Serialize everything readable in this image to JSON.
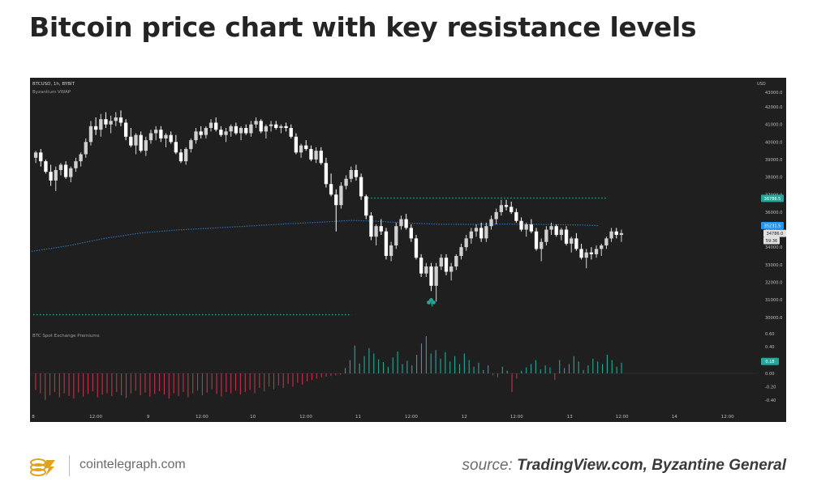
{
  "headline": "Bitcoin price chart with key resistance levels",
  "footer": {
    "site": "cointelegraph.com",
    "source_prefix": "source:",
    "source_names": "TradingView.com, Byzantine General"
  },
  "chart_data": {
    "type": "candlestick",
    "symbol_label": "BTCUSD, 1h, BYBIT",
    "indicator_label": "Byzantium VWAP",
    "currency": "USD",
    "price_axis": {
      "ticks": [
        42000,
        41000,
        40000,
        39000,
        38000,
        37000,
        36000,
        35000,
        34000,
        33000,
        32000,
        31000,
        30000
      ],
      "tick_labels": [
        "42000.0",
        "41000.0",
        "40000.0",
        "39000.0",
        "38000.0",
        "37000.0",
        "36000.0",
        "35000.0",
        "34000.0",
        "33000.0",
        "32000.0",
        "31000.0",
        "30000.0"
      ],
      "top_partial_label": "43000.0"
    },
    "price_tags": [
      {
        "value": 36786.5,
        "label": "36786.5",
        "color": "#26a69a"
      },
      {
        "value": 35231.5,
        "label": "35231.5",
        "color": "#2196f3"
      },
      {
        "value": 34786.0,
        "label": "34786.0",
        "color": "#e0e0e0"
      },
      {
        "value": 34380,
        "label": "59:36",
        "color": "#e0e0e0"
      }
    ],
    "resistance_levels": [
      {
        "value": 36800,
        "from": 0.46,
        "to": 0.79,
        "color": "#26a69a"
      },
      {
        "value": 30150,
        "from": 0.0,
        "to": 0.44,
        "color": "#26a69a"
      }
    ],
    "vwap": {
      "color": "#2f6fb0",
      "points": [
        [
          0.0,
          33760
        ],
        [
          0.05,
          34080
        ],
        [
          0.1,
          34500
        ],
        [
          0.15,
          34810
        ],
        [
          0.2,
          34980
        ],
        [
          0.25,
          35090
        ],
        [
          0.3,
          35210
        ],
        [
          0.35,
          35330
        ],
        [
          0.4,
          35430
        ],
        [
          0.44,
          35530
        ],
        [
          0.48,
          35470
        ],
        [
          0.52,
          35370
        ],
        [
          0.56,
          35310
        ],
        [
          0.6,
          35300
        ],
        [
          0.65,
          35320
        ],
        [
          0.7,
          35300
        ],
        [
          0.75,
          35270
        ],
        [
          0.78,
          35230
        ]
      ]
    },
    "x_axis": {
      "labels": [
        {
          "pos": 0.0,
          "label": "8"
        },
        {
          "pos": 0.086,
          "label": "12:00"
        },
        {
          "pos": 0.158,
          "label": "9"
        },
        {
          "pos": 0.232,
          "label": "12:00"
        },
        {
          "pos": 0.302,
          "label": "10"
        },
        {
          "pos": 0.375,
          "label": "12:00"
        },
        {
          "pos": 0.447,
          "label": "11"
        },
        {
          "pos": 0.52,
          "label": "12:00"
        },
        {
          "pos": 0.593,
          "label": "12"
        },
        {
          "pos": 0.665,
          "label": "12:00"
        },
        {
          "pos": 0.738,
          "label": "13"
        },
        {
          "pos": 0.81,
          "label": "12:00"
        },
        {
          "pos": 0.882,
          "label": "14"
        },
        {
          "pos": 0.955,
          "label": "12:00"
        }
      ]
    },
    "candles": [
      [
        39100,
        39500,
        38800,
        39400
      ],
      [
        39400,
        39600,
        38600,
        38900
      ],
      [
        38900,
        39000,
        38200,
        38300
      ],
      [
        38300,
        38700,
        37500,
        37800
      ],
      [
        37800,
        38600,
        37200,
        38400
      ],
      [
        38400,
        38800,
        38100,
        38700
      ],
      [
        38700,
        38900,
        37900,
        38000
      ],
      [
        38000,
        38600,
        37700,
        38500
      ],
      [
        38500,
        39100,
        38300,
        38900
      ],
      [
        38900,
        39400,
        38600,
        39300
      ],
      [
        39300,
        40200,
        39100,
        40000
      ],
      [
        40000,
        41200,
        39800,
        40900
      ],
      [
        40900,
        41400,
        40400,
        40700
      ],
      [
        40700,
        41600,
        40300,
        41300
      ],
      [
        41300,
        41700,
        40800,
        41000
      ],
      [
        41000,
        41500,
        40500,
        41200
      ],
      [
        41200,
        41700,
        40900,
        41400
      ],
      [
        41400,
        41800,
        40900,
        41100
      ],
      [
        41100,
        41300,
        40100,
        40300
      ],
      [
        40300,
        40800,
        39700,
        39800
      ],
      [
        39800,
        40500,
        39300,
        40400
      ],
      [
        40400,
        40600,
        39400,
        39500
      ],
      [
        39500,
        40300,
        39200,
        40100
      ],
      [
        40100,
        40700,
        39900,
        40500
      ],
      [
        40500,
        40900,
        40100,
        40700
      ],
      [
        40700,
        40900,
        40000,
        40200
      ],
      [
        40200,
        40500,
        39700,
        40400
      ],
      [
        40400,
        40600,
        39900,
        40000
      ],
      [
        40000,
        40400,
        39300,
        39400
      ],
      [
        39400,
        39600,
        38800,
        38900
      ],
      [
        38900,
        39700,
        38700,
        39600
      ],
      [
        39600,
        40200,
        39400,
        40100
      ],
      [
        40100,
        40800,
        39900,
        40600
      ],
      [
        40600,
        40900,
        40200,
        40400
      ],
      [
        40400,
        40900,
        40200,
        40800
      ],
      [
        40800,
        41300,
        40600,
        41100
      ],
      [
        41100,
        41400,
        40600,
        40700
      ],
      [
        40700,
        40900,
        40300,
        40400
      ],
      [
        40400,
        40800,
        40000,
        40600
      ],
      [
        40600,
        41000,
        40300,
        40900
      ],
      [
        40900,
        41100,
        40400,
        40500
      ],
      [
        40500,
        40900,
        40100,
        40800
      ],
      [
        40800,
        41000,
        40400,
        40500
      ],
      [
        40500,
        41200,
        40300,
        41000
      ],
      [
        41000,
        41400,
        40800,
        41200
      ],
      [
        41200,
        41300,
        40500,
        40600
      ],
      [
        40600,
        41000,
        40200,
        40900
      ],
      [
        40900,
        41200,
        40600,
        41000
      ],
      [
        41000,
        41200,
        40700,
        40800
      ],
      [
        40800,
        41000,
        40500,
        40900
      ],
      [
        40900,
        41100,
        40600,
        40800
      ],
      [
        40800,
        41000,
        40200,
        40300
      ],
      [
        40300,
        40500,
        39300,
        39400
      ],
      [
        39400,
        39900,
        39100,
        39800
      ],
      [
        39800,
        40100,
        39500,
        39600
      ],
      [
        39600,
        39800,
        38900,
        39000
      ],
      [
        39000,
        39700,
        38800,
        39500
      ],
      [
        39500,
        39700,
        38700,
        38800
      ],
      [
        38800,
        39100,
        37400,
        37600
      ],
      [
        37600,
        38200,
        36900,
        37000
      ],
      [
        37000,
        37300,
        34900,
        36400
      ],
      [
        36400,
        37700,
        36200,
        37500
      ],
      [
        37500,
        38100,
        37300,
        37900
      ],
      [
        37900,
        38600,
        37700,
        38400
      ],
      [
        38400,
        38700,
        37800,
        38000
      ],
      [
        38000,
        38200,
        36700,
        36900
      ],
      [
        36900,
        37000,
        35600,
        35800
      ],
      [
        35800,
        36000,
        34400,
        34600
      ],
      [
        34600,
        35300,
        34100,
        35200
      ],
      [
        35200,
        35600,
        34700,
        34900
      ],
      [
        34900,
        35100,
        33300,
        33500
      ],
      [
        33500,
        34300,
        33200,
        34100
      ],
      [
        34100,
        35400,
        33900,
        35200
      ],
      [
        35200,
        35800,
        35000,
        35600
      ],
      [
        35600,
        35900,
        35000,
        35100
      ],
      [
        35100,
        35300,
        34300,
        34500
      ],
      [
        34500,
        34700,
        33300,
        33400
      ],
      [
        33400,
        33600,
        32300,
        32500
      ],
      [
        32500,
        33100,
        32300,
        32900
      ],
      [
        32900,
        33100,
        31500,
        31800
      ],
      [
        31800,
        33100,
        30900,
        32900
      ],
      [
        32900,
        33600,
        32700,
        33400
      ],
      [
        33400,
        33600,
        32400,
        32600
      ],
      [
        32600,
        33100,
        32100,
        32900
      ],
      [
        32900,
        33600,
        32700,
        33500
      ],
      [
        33500,
        34200,
        33300,
        34000
      ],
      [
        34000,
        34700,
        33800,
        34500
      ],
      [
        34500,
        35100,
        34200,
        34900
      ],
      [
        34900,
        35300,
        34600,
        35100
      ],
      [
        35100,
        35400,
        34300,
        34500
      ],
      [
        34500,
        35400,
        34300,
        35200
      ],
      [
        35200,
        35800,
        35000,
        35600
      ],
      [
        35600,
        36200,
        35300,
        36000
      ],
      [
        36000,
        36700,
        35800,
        36400
      ],
      [
        36400,
        36700,
        36100,
        36300
      ],
      [
        36300,
        36600,
        35900,
        36000
      ],
      [
        36000,
        36200,
        35400,
        35500
      ],
      [
        35500,
        35700,
        34900,
        35000
      ],
      [
        35000,
        35400,
        34600,
        35300
      ],
      [
        35300,
        35600,
        34800,
        34900
      ],
      [
        34900,
        35100,
        33800,
        33900
      ],
      [
        33900,
        34500,
        33200,
        34300
      ],
      [
        34300,
        35200,
        34100,
        35000
      ],
      [
        35000,
        35400,
        34700,
        35200
      ],
      [
        35200,
        35300,
        34600,
        34700
      ],
      [
        34700,
        35100,
        34400,
        35000
      ],
      [
        35000,
        35200,
        34100,
        34200
      ],
      [
        34200,
        34600,
        33700,
        34500
      ],
      [
        34500,
        34800,
        33800,
        33900
      ],
      [
        33900,
        34200,
        33300,
        33400
      ],
      [
        33400,
        33900,
        32800,
        33700
      ],
      [
        33700,
        34000,
        33300,
        33600
      ],
      [
        33600,
        34100,
        33400,
        33900
      ],
      [
        33900,
        34200,
        33500,
        34100
      ],
      [
        34100,
        34600,
        33900,
        34500
      ],
      [
        34500,
        35100,
        34300,
        34900
      ],
      [
        34900,
        35100,
        34500,
        34700
      ],
      [
        34700,
        35000,
        34300,
        34800
      ]
    ],
    "indicator": {
      "label": "BTC Spot Exchange Premiums",
      "axis_ticks": [
        0.6,
        0.4,
        0.2,
        0.0,
        -0.2,
        -0.4
      ],
      "axis_labels": [
        "0.60",
        "0.40",
        "0.20",
        "0.00",
        "-0.20",
        "-0.40"
      ],
      "current_tag": "0.18",
      "positive_color": "#26a69a",
      "negative_color": "#c2334a",
      "values": [
        -0.25,
        -0.3,
        -0.4,
        -0.33,
        -0.28,
        -0.36,
        -0.3,
        -0.34,
        -0.38,
        -0.29,
        -0.35,
        -0.31,
        -0.27,
        -0.36,
        -0.32,
        -0.3,
        -0.34,
        -0.28,
        -0.33,
        -0.37,
        -0.3,
        -0.26,
        -0.33,
        -0.29,
        -0.35,
        -0.31,
        -0.27,
        -0.32,
        -0.38,
        -0.3,
        -0.34,
        -0.28,
        -0.36,
        -0.3,
        -0.26,
        -0.33,
        -0.29,
        -0.24,
        -0.31,
        -0.35,
        -0.28,
        -0.3,
        -0.26,
        -0.32,
        -0.28,
        -0.25,
        -0.3,
        -0.22,
        -0.27,
        -0.2,
        -0.24,
        -0.18,
        -0.22,
        -0.16,
        -0.2,
        -0.14,
        -0.17,
        -0.12,
        -0.1,
        -0.08,
        -0.06,
        -0.05,
        -0.04,
        -0.03,
        -0.02,
        0.08,
        0.2,
        0.42,
        0.15,
        0.26,
        0.38,
        0.3,
        0.21,
        0.17,
        0.1,
        0.24,
        0.33,
        0.14,
        0.19,
        0.12,
        0.28,
        0.45,
        0.56,
        0.3,
        0.35,
        0.22,
        0.32,
        0.18,
        0.26,
        0.14,
        0.3,
        0.2,
        0.1,
        0.16,
        0.05,
        0.12,
        -0.03,
        -0.06,
        0.1,
        0.04,
        -0.28,
        -0.08,
        0.04,
        0.09,
        0.14,
        0.2,
        0.06,
        0.12,
        0.09,
        -0.1,
        0.2,
        0.08,
        0.14,
        0.26,
        0.18,
        0.05,
        0.12,
        0.22,
        0.18,
        0.14,
        0.28,
        0.2,
        0.1,
        0.16
      ]
    }
  }
}
